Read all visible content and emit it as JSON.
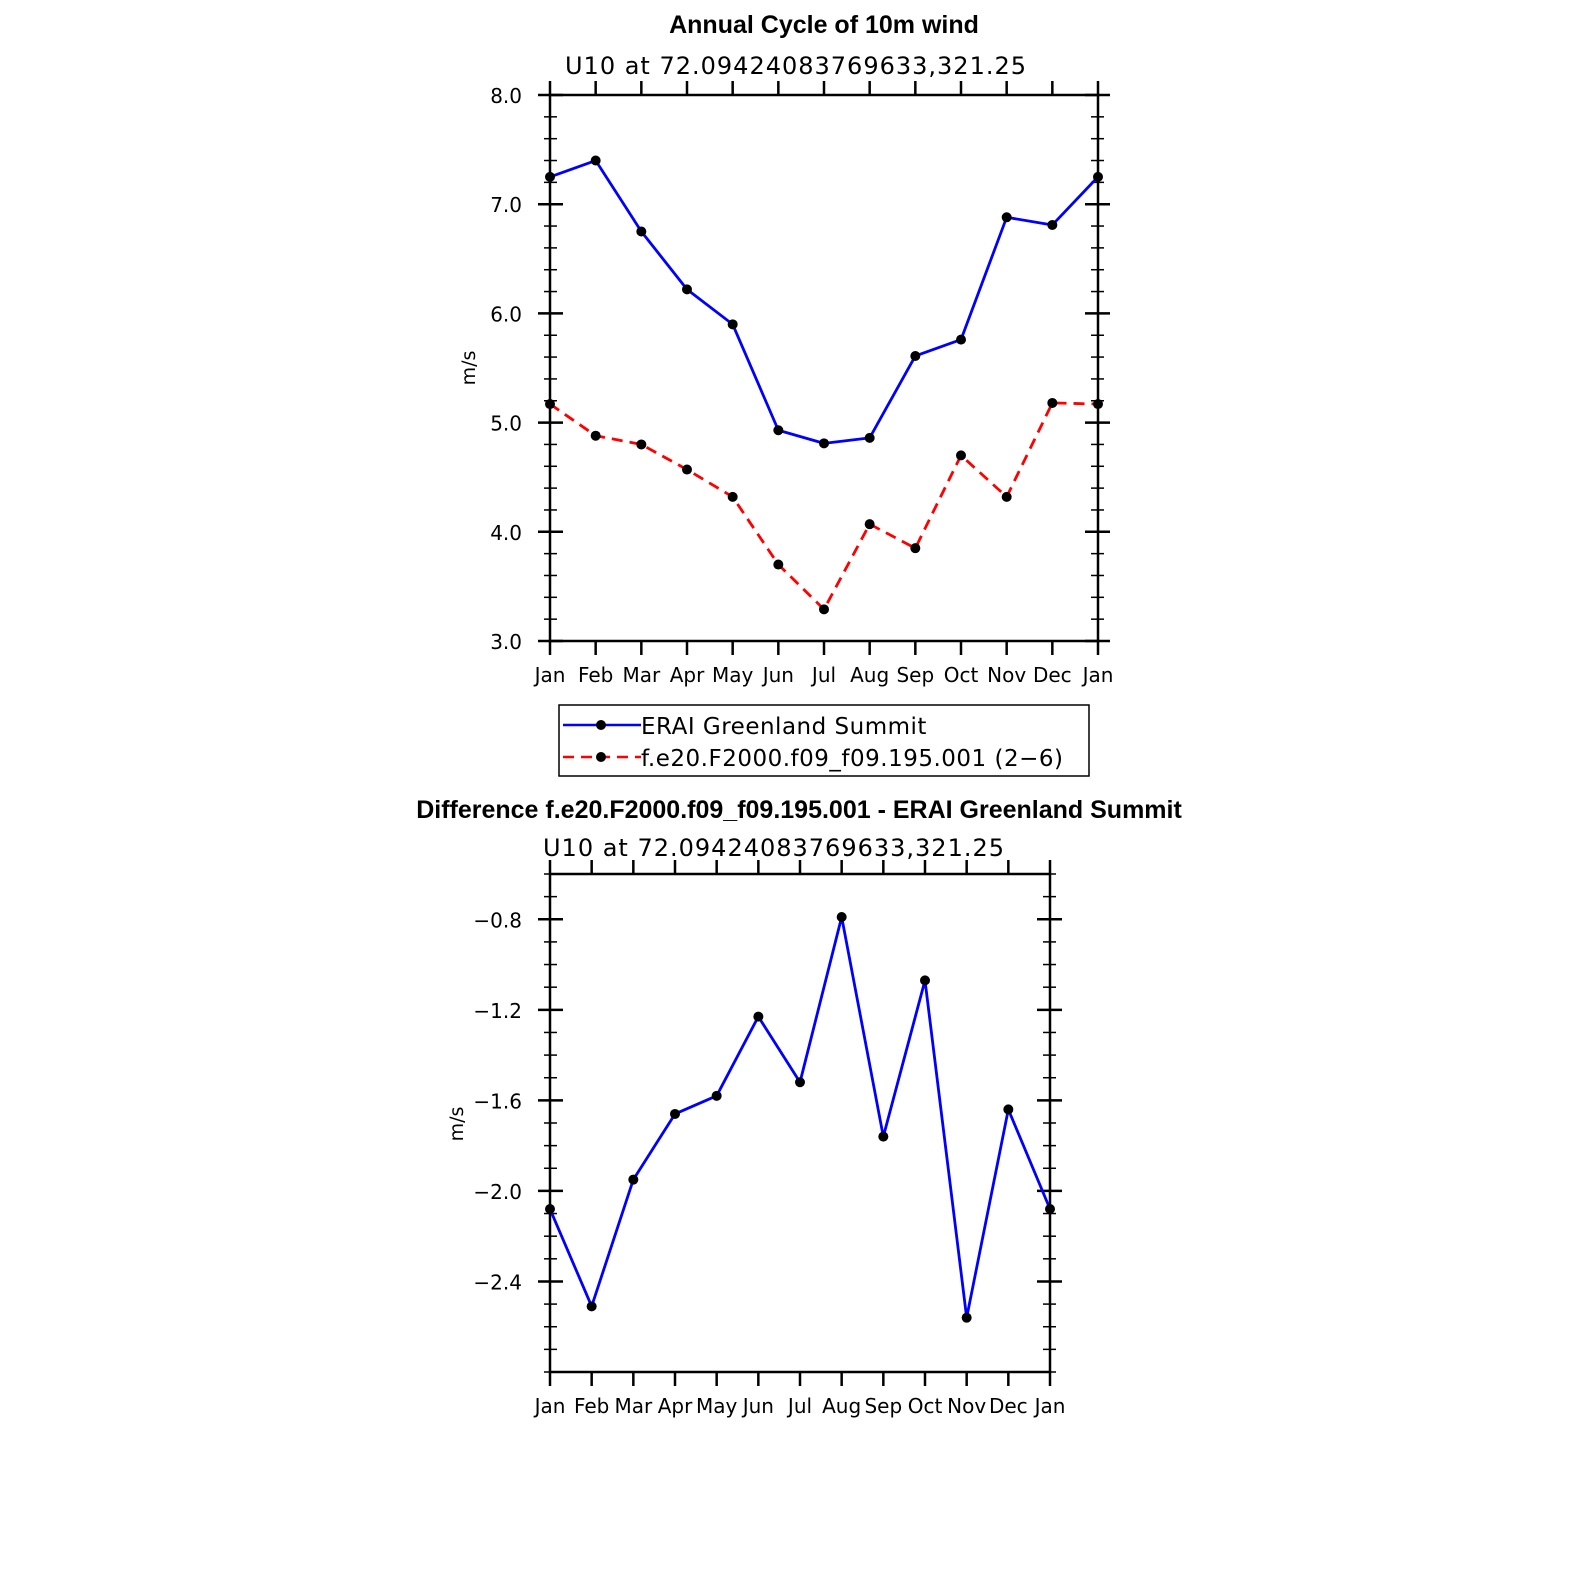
{
  "chart_data": [
    {
      "type": "line",
      "title": "Annual Cycle of 10m wind",
      "subtitle": "U10 at 72.09424083769633,321.25",
      "xlabel": "",
      "ylabel": "m/s",
      "categories": [
        "Jan",
        "Feb",
        "Mar",
        "Apr",
        "May",
        "Jun",
        "Jul",
        "Aug",
        "Sep",
        "Oct",
        "Nov",
        "Dec",
        "Jan"
      ],
      "ylim": [
        3.0,
        8.0
      ],
      "yticks": [
        3.0,
        4.0,
        5.0,
        6.0,
        7.0,
        8.0
      ],
      "ytick_labels": [
        "3.0",
        "4.0",
        "5.0",
        "6.0",
        "7.0",
        "8.0"
      ],
      "series": [
        {
          "name": "ERAI Greenland Summit",
          "color": "#0000ff",
          "dash": "solid",
          "values": [
            7.25,
            7.4,
            6.75,
            6.22,
            5.9,
            4.93,
            4.81,
            4.86,
            5.61,
            5.76,
            6.88,
            6.81,
            7.25
          ]
        },
        {
          "name": "f.e20.F2000.f09_f09.195.001 (2−6)",
          "color": "#ff0000",
          "dash": "dashed",
          "values": [
            5.17,
            4.88,
            4.8,
            4.57,
            4.32,
            3.7,
            3.29,
            4.07,
            3.85,
            4.7,
            4.32,
            5.18,
            5.17
          ]
        }
      ],
      "legend": "below"
    },
    {
      "type": "line",
      "title": "Difference f.e20.F2000.f09_f09.195.001 - ERAI Greenland Summit",
      "subtitle": "U10 at 72.09424083769633,321.25",
      "xlabel": "",
      "ylabel": "m/s",
      "categories": [
        "Jan",
        "Feb",
        "Mar",
        "Apr",
        "May",
        "Jun",
        "Jul",
        "Aug",
        "Sep",
        "Oct",
        "Nov",
        "Dec",
        "Jan"
      ],
      "ylim": [
        -2.8,
        -0.6
      ],
      "yticks": [
        -2.4,
        -2.0,
        -1.6,
        -1.2,
        -0.8
      ],
      "ytick_labels": [
        "−2.4",
        "−2.0",
        "−1.6",
        "−1.2",
        "−0.8"
      ],
      "series": [
        {
          "name": "Difference",
          "color": "#0000ff",
          "dash": "solid",
          "values": [
            -2.08,
            -2.51,
            -1.95,
            -1.66,
            -1.58,
            -1.23,
            -1.52,
            -0.79,
            -1.76,
            -1.07,
            -2.56,
            -1.64,
            -2.08
          ]
        }
      ]
    }
  ]
}
